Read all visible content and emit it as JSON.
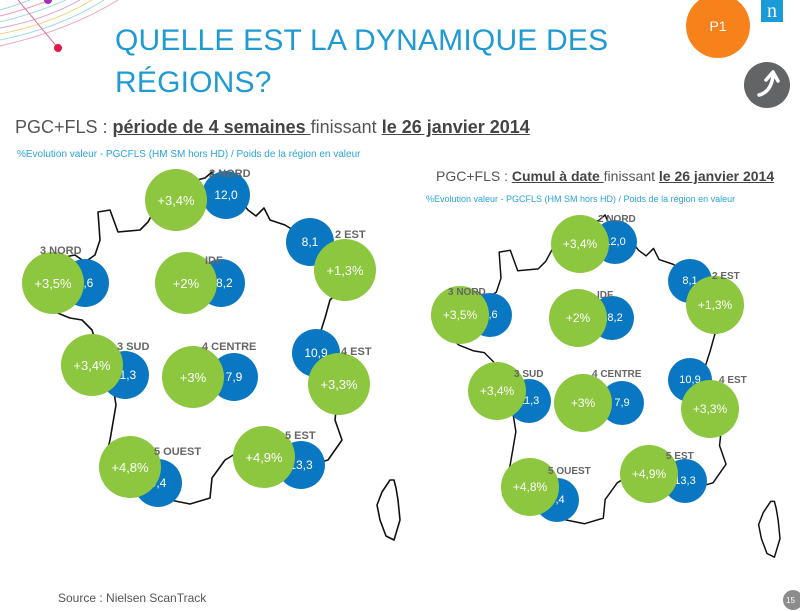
{
  "header": {
    "title_line1": "QUELLE EST LA DYNAMIQUE DES",
    "title_line2": "RÉGIONS?",
    "badge_label": "P1",
    "logo_letter": "n",
    "up_button_icon": "curved-arrow-up-icon"
  },
  "left_panel": {
    "subtitle_prefix": "PGC+FLS : ",
    "subtitle_period": "période de 4 semaines ",
    "subtitle_mid": "finissant ",
    "subtitle_date": "le 26 janvier 2014",
    "legend": "%Evolution valeur - PGCFLS (HM SM hors HD) / Poids de la région en valeur"
  },
  "right_panel": {
    "subtitle_prefix": "PGC+FLS : ",
    "subtitle_period": "Cumul à date ",
    "subtitle_mid": "finissant ",
    "subtitle_date": "le 26 janvier 2014",
    "legend": "%Evolution valeur - PGCFLS (HM SM hors HD) / Poids de la région en valeur"
  },
  "colors": {
    "title": "#1f9ad3",
    "evolution_bubble": "#8dc63f",
    "weight_bubble": "#0a77c2",
    "badge": "#f7821b"
  },
  "chart_data": [
    {
      "type": "map-bubbles",
      "title": "PGC+FLS : période de 4 semaines finissant le 26 janvier 2014",
      "legend": "%Evolution valeur - PGCFLS (HM SM hors HD) / Poids de la région en valeur",
      "regions": [
        {
          "name": "2 NORD",
          "evolution": "+3,4%",
          "weight": "12,0"
        },
        {
          "name": "2 EST",
          "evolution": "+1,3%",
          "weight": "8,1"
        },
        {
          "name": "3 NORD",
          "evolution": "+3,5%",
          "weight": "8,6"
        },
        {
          "name": "IDF",
          "evolution": "+2%",
          "weight": "18,2"
        },
        {
          "name": "3 SUD",
          "evolution": "+3,4%",
          "weight": "11,3"
        },
        {
          "name": "4 CENTRE",
          "evolution": "+3%",
          "weight": "7,9"
        },
        {
          "name": "4 EST",
          "evolution": "+3,3%",
          "weight": "10,9"
        },
        {
          "name": "5 OUEST",
          "evolution": "+4,8%",
          "weight": "9,4"
        },
        {
          "name": "5 EST",
          "evolution": "+4,9%",
          "weight": "13,3"
        }
      ]
    },
    {
      "type": "map-bubbles",
      "title": "PGC+FLS : Cumul à date finissant le 26 janvier 2014",
      "legend": "%Evolution valeur - PGCFLS (HM SM hors HD) / Poids de la région en valeur",
      "regions": [
        {
          "name": "2 NORD",
          "evolution": "+3,4%",
          "weight": "12,0"
        },
        {
          "name": "2 EST",
          "evolution": "+1,3%",
          "weight": "8,1"
        },
        {
          "name": "3 NORD",
          "evolution": "+3,5%",
          "weight": "8,6"
        },
        {
          "name": "IDF",
          "evolution": "+2%",
          "weight": "18,2"
        },
        {
          "name": "3 SUD",
          "evolution": "+3,4%",
          "weight": "11,3"
        },
        {
          "name": "4 CENTRE",
          "evolution": "+3%",
          "weight": "7,9"
        },
        {
          "name": "4 EST",
          "evolution": "+3,3%",
          "weight": "10,9"
        },
        {
          "name": "5 OUEST",
          "evolution": "+4,8%",
          "weight": "9,4"
        },
        {
          "name": "5 EST",
          "evolution": "+4,9%",
          "weight": "13,3"
        }
      ]
    }
  ],
  "footer": {
    "source": "Source : Nielsen ScanTrack",
    "page_number": "15"
  }
}
